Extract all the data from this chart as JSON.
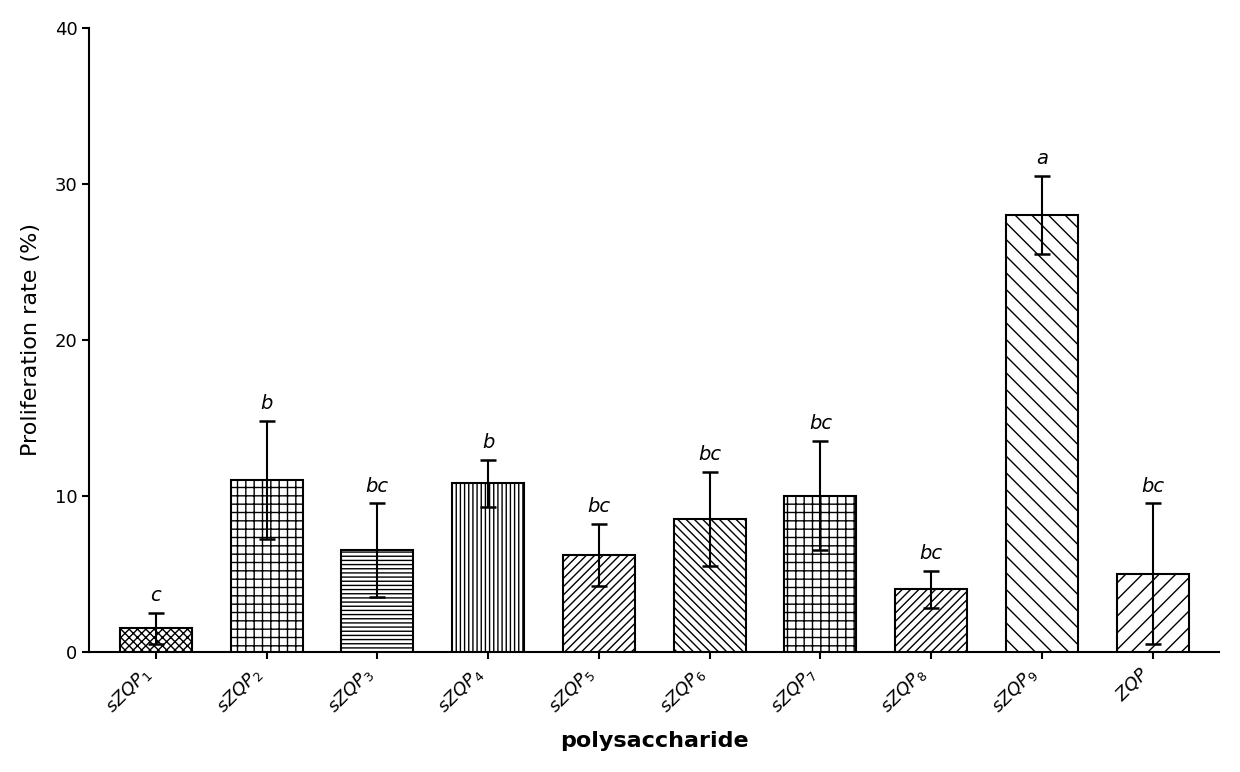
{
  "categories_raw": [
    "sZQP1",
    "sZQP2",
    "sZQP3",
    "sZQP4",
    "sZQP5",
    "sZQP6",
    "sZQP7",
    "sZQP8",
    "sZQP9",
    "ZQP"
  ],
  "values": [
    1.5,
    11.0,
    6.5,
    10.8,
    6.2,
    8.5,
    10.0,
    4.0,
    28.0,
    5.0
  ],
  "errors": [
    1.0,
    3.8,
    3.0,
    1.5,
    2.0,
    3.0,
    3.5,
    1.2,
    2.5,
    4.5
  ],
  "significance": [
    "c",
    "b",
    "bc",
    "b",
    "bc",
    "bc",
    "bc",
    "bc",
    "a",
    "bc"
  ],
  "bar_color": "#ffffff",
  "bar_edge_color": "#000000",
  "ylabel": "Proliferation rate (%)",
  "xlabel": "polysaccharide",
  "ylim": [
    0,
    40
  ],
  "yticks": [
    0,
    10,
    20,
    30,
    40
  ],
  "background_color": "#ffffff",
  "label_fontsize": 16,
  "tick_fontsize": 13,
  "sig_fontsize": 14,
  "bar_linewidth": 1.5
}
